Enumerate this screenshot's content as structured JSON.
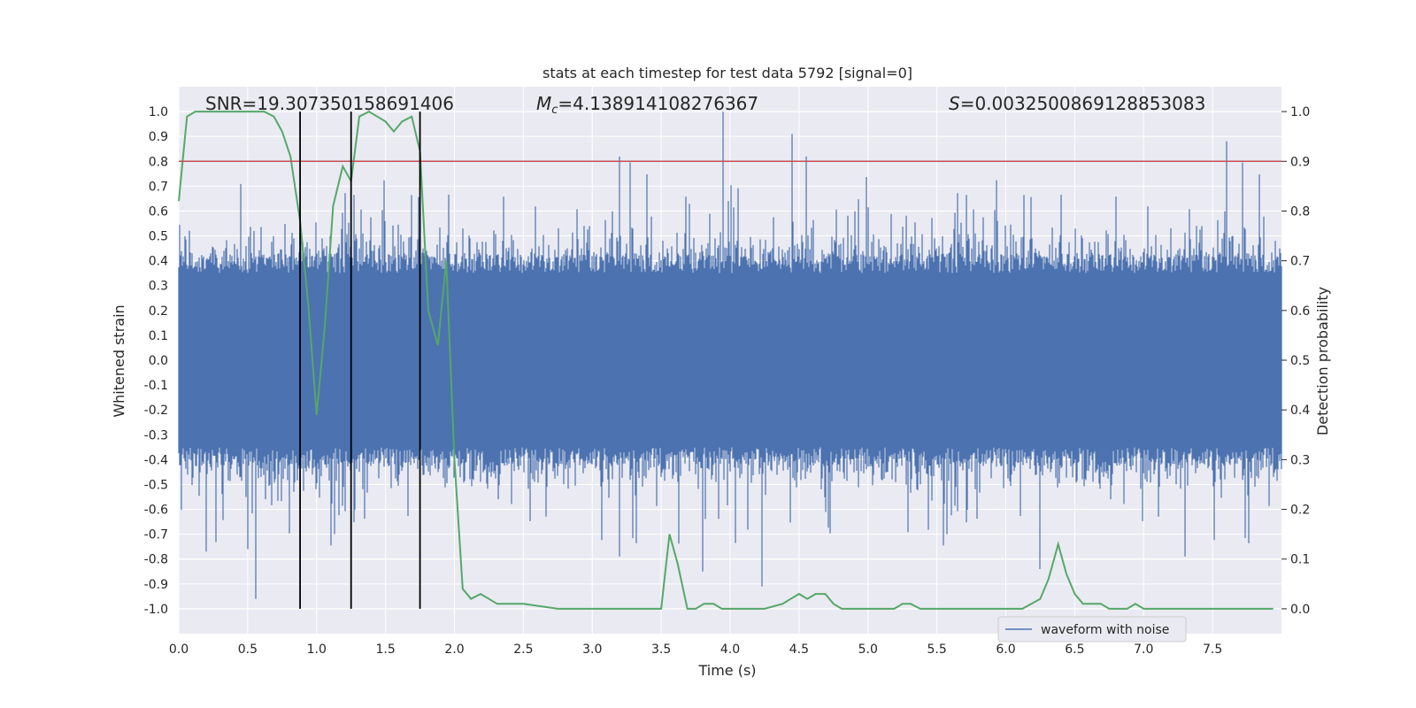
{
  "chart_data": {
    "type": "line",
    "title": "stats at each timestep for test data 5792 [signal=0]",
    "xlabel": "Time (s)",
    "ylabel": "Whitened strain",
    "y2label": "Detection probability",
    "xlim": [
      0.0,
      8.0
    ],
    "ylim": [
      -1.1,
      1.1
    ],
    "y2lim": [
      -0.05,
      1.05
    ],
    "grid": true,
    "xticks": [
      "0.0",
      "0.5",
      "1.0",
      "1.5",
      "2.0",
      "2.5",
      "3.0",
      "3.5",
      "4.0",
      "4.5",
      "5.0",
      "5.5",
      "6.0",
      "6.5",
      "7.0",
      "7.5"
    ],
    "xtick_values": [
      0.0,
      0.5,
      1.0,
      1.5,
      2.0,
      2.5,
      3.0,
      3.5,
      4.0,
      4.5,
      5.0,
      5.5,
      6.0,
      6.5,
      7.0,
      7.5
    ],
    "yticks": [
      "1.0",
      "0.9",
      "0.8",
      "0.7",
      "0.6",
      "0.5",
      "0.4",
      "0.3",
      "0.2",
      "0.1",
      "0.0",
      "-0.1",
      "-0.2",
      "-0.3",
      "-0.4",
      "-0.5",
      "-0.6",
      "-0.7",
      "-0.8",
      "-0.9",
      "-1.0"
    ],
    "ytick_values": [
      1.0,
      0.9,
      0.8,
      0.7,
      0.6,
      0.5,
      0.4,
      0.3,
      0.2,
      0.1,
      0.0,
      -0.1,
      -0.2,
      -0.3,
      -0.4,
      -0.5,
      -0.6,
      -0.7,
      -0.8,
      -0.9,
      -1.0
    ],
    "y2ticks": [
      "1.0",
      "0.9",
      "0.8",
      "0.7",
      "0.6",
      "0.5",
      "0.4",
      "0.3",
      "0.2",
      "0.1",
      "0.0"
    ],
    "y2tick_values": [
      1.0,
      0.9,
      0.8,
      0.7,
      0.6,
      0.5,
      0.4,
      0.3,
      0.2,
      0.1,
      0.0
    ],
    "annotations": {
      "snr": "SNR=19.307350158691406",
      "mc": "M",
      "mc_sub": "c",
      "mc_value": "=4.138914108276367",
      "s": "S",
      "s_value": "=0.0032500869128853083"
    },
    "legend": {
      "entries": [
        "waveform with noise"
      ],
      "placement": "lower-right"
    },
    "colors": {
      "waveform": "#4c72b0",
      "probability": "#55a868",
      "threshold": "#c44e52",
      "markers": "#000000",
      "background": "#eaeaf2",
      "grid": "#ffffff"
    },
    "series": [
      {
        "name": "waveform with noise",
        "axis": "left",
        "style": "dense noise, amplitude envelope approx ±0.4 with spikes",
        "spikes": [
          {
            "x": 0.56,
            "y": -0.96
          },
          {
            "x": 3.2,
            "y": 0.82
          },
          {
            "x": 3.95,
            "y": 1.0
          },
          {
            "x": 4.45,
            "y": 0.91
          },
          {
            "x": 4.55,
            "y": 0.82
          },
          {
            "x": 4.23,
            "y": -0.91
          },
          {
            "x": 3.8,
            "y": -0.85
          },
          {
            "x": 3.2,
            "y": -0.79
          },
          {
            "x": 6.25,
            "y": -0.84
          },
          {
            "x": 7.6,
            "y": 0.88
          },
          {
            "x": 7.3,
            "y": -0.79
          },
          {
            "x": 0.2,
            "y": -0.77
          },
          {
            "x": 0.5,
            "y": -0.76
          }
        ]
      },
      {
        "axis": "right",
        "x": [
          0.0,
          0.06,
          0.12,
          0.19,
          0.25,
          0.31,
          0.38,
          0.44,
          0.5,
          0.56,
          0.62,
          0.69,
          0.75,
          0.81,
          0.88,
          0.94,
          1.0,
          1.06,
          1.12,
          1.19,
          1.25,
          1.31,
          1.38,
          1.44,
          1.5,
          1.56,
          1.62,
          1.69,
          1.75,
          1.81,
          1.88,
          1.94,
          2.0,
          2.06,
          2.12,
          2.19,
          2.25,
          2.31,
          2.38,
          2.5,
          2.75,
          3.0,
          3.25,
          3.4,
          3.5,
          3.56,
          3.62,
          3.69,
          3.75,
          3.81,
          3.88,
          3.94,
          4.0,
          4.12,
          4.25,
          4.38,
          4.44,
          4.5,
          4.56,
          4.62,
          4.69,
          4.75,
          4.81,
          4.88,
          5.0,
          5.19,
          5.25,
          5.31,
          5.38,
          5.5,
          5.75,
          6.0,
          6.12,
          6.25,
          6.31,
          6.38,
          6.44,
          6.5,
          6.56,
          6.62,
          6.69,
          6.75,
          6.81,
          6.88,
          6.94,
          7.0,
          7.25,
          7.5,
          7.75,
          7.94
        ],
        "values": [
          0.82,
          0.99,
          1.0,
          1.0,
          1.0,
          1.0,
          1.0,
          1.0,
          1.0,
          1.0,
          1.0,
          0.99,
          0.96,
          0.91,
          0.78,
          0.61,
          0.39,
          0.57,
          0.81,
          0.89,
          0.86,
          0.99,
          1.0,
          0.99,
          0.98,
          0.96,
          0.98,
          0.99,
          0.92,
          0.6,
          0.53,
          0.7,
          0.3,
          0.04,
          0.02,
          0.03,
          0.02,
          0.01,
          0.01,
          0.01,
          0.0,
          0.0,
          0.0,
          0.0,
          0.0,
          0.15,
          0.09,
          0.0,
          0.0,
          0.01,
          0.01,
          0.0,
          0.0,
          0.0,
          0.0,
          0.01,
          0.02,
          0.03,
          0.02,
          0.03,
          0.03,
          0.01,
          0.0,
          0.0,
          0.0,
          0.0,
          0.01,
          0.01,
          0.0,
          0.0,
          0.0,
          0.0,
          0.0,
          0.02,
          0.06,
          0.13,
          0.07,
          0.03,
          0.01,
          0.01,
          0.01,
          0.0,
          0.0,
          0.0,
          0.01,
          0.0,
          0.0,
          0.0,
          0.0,
          0.0
        ]
      }
    ],
    "threshold_line": {
      "axis": "right",
      "value": 0.9
    },
    "vertical_lines": [
      0.88,
      1.25,
      1.75
    ]
  }
}
